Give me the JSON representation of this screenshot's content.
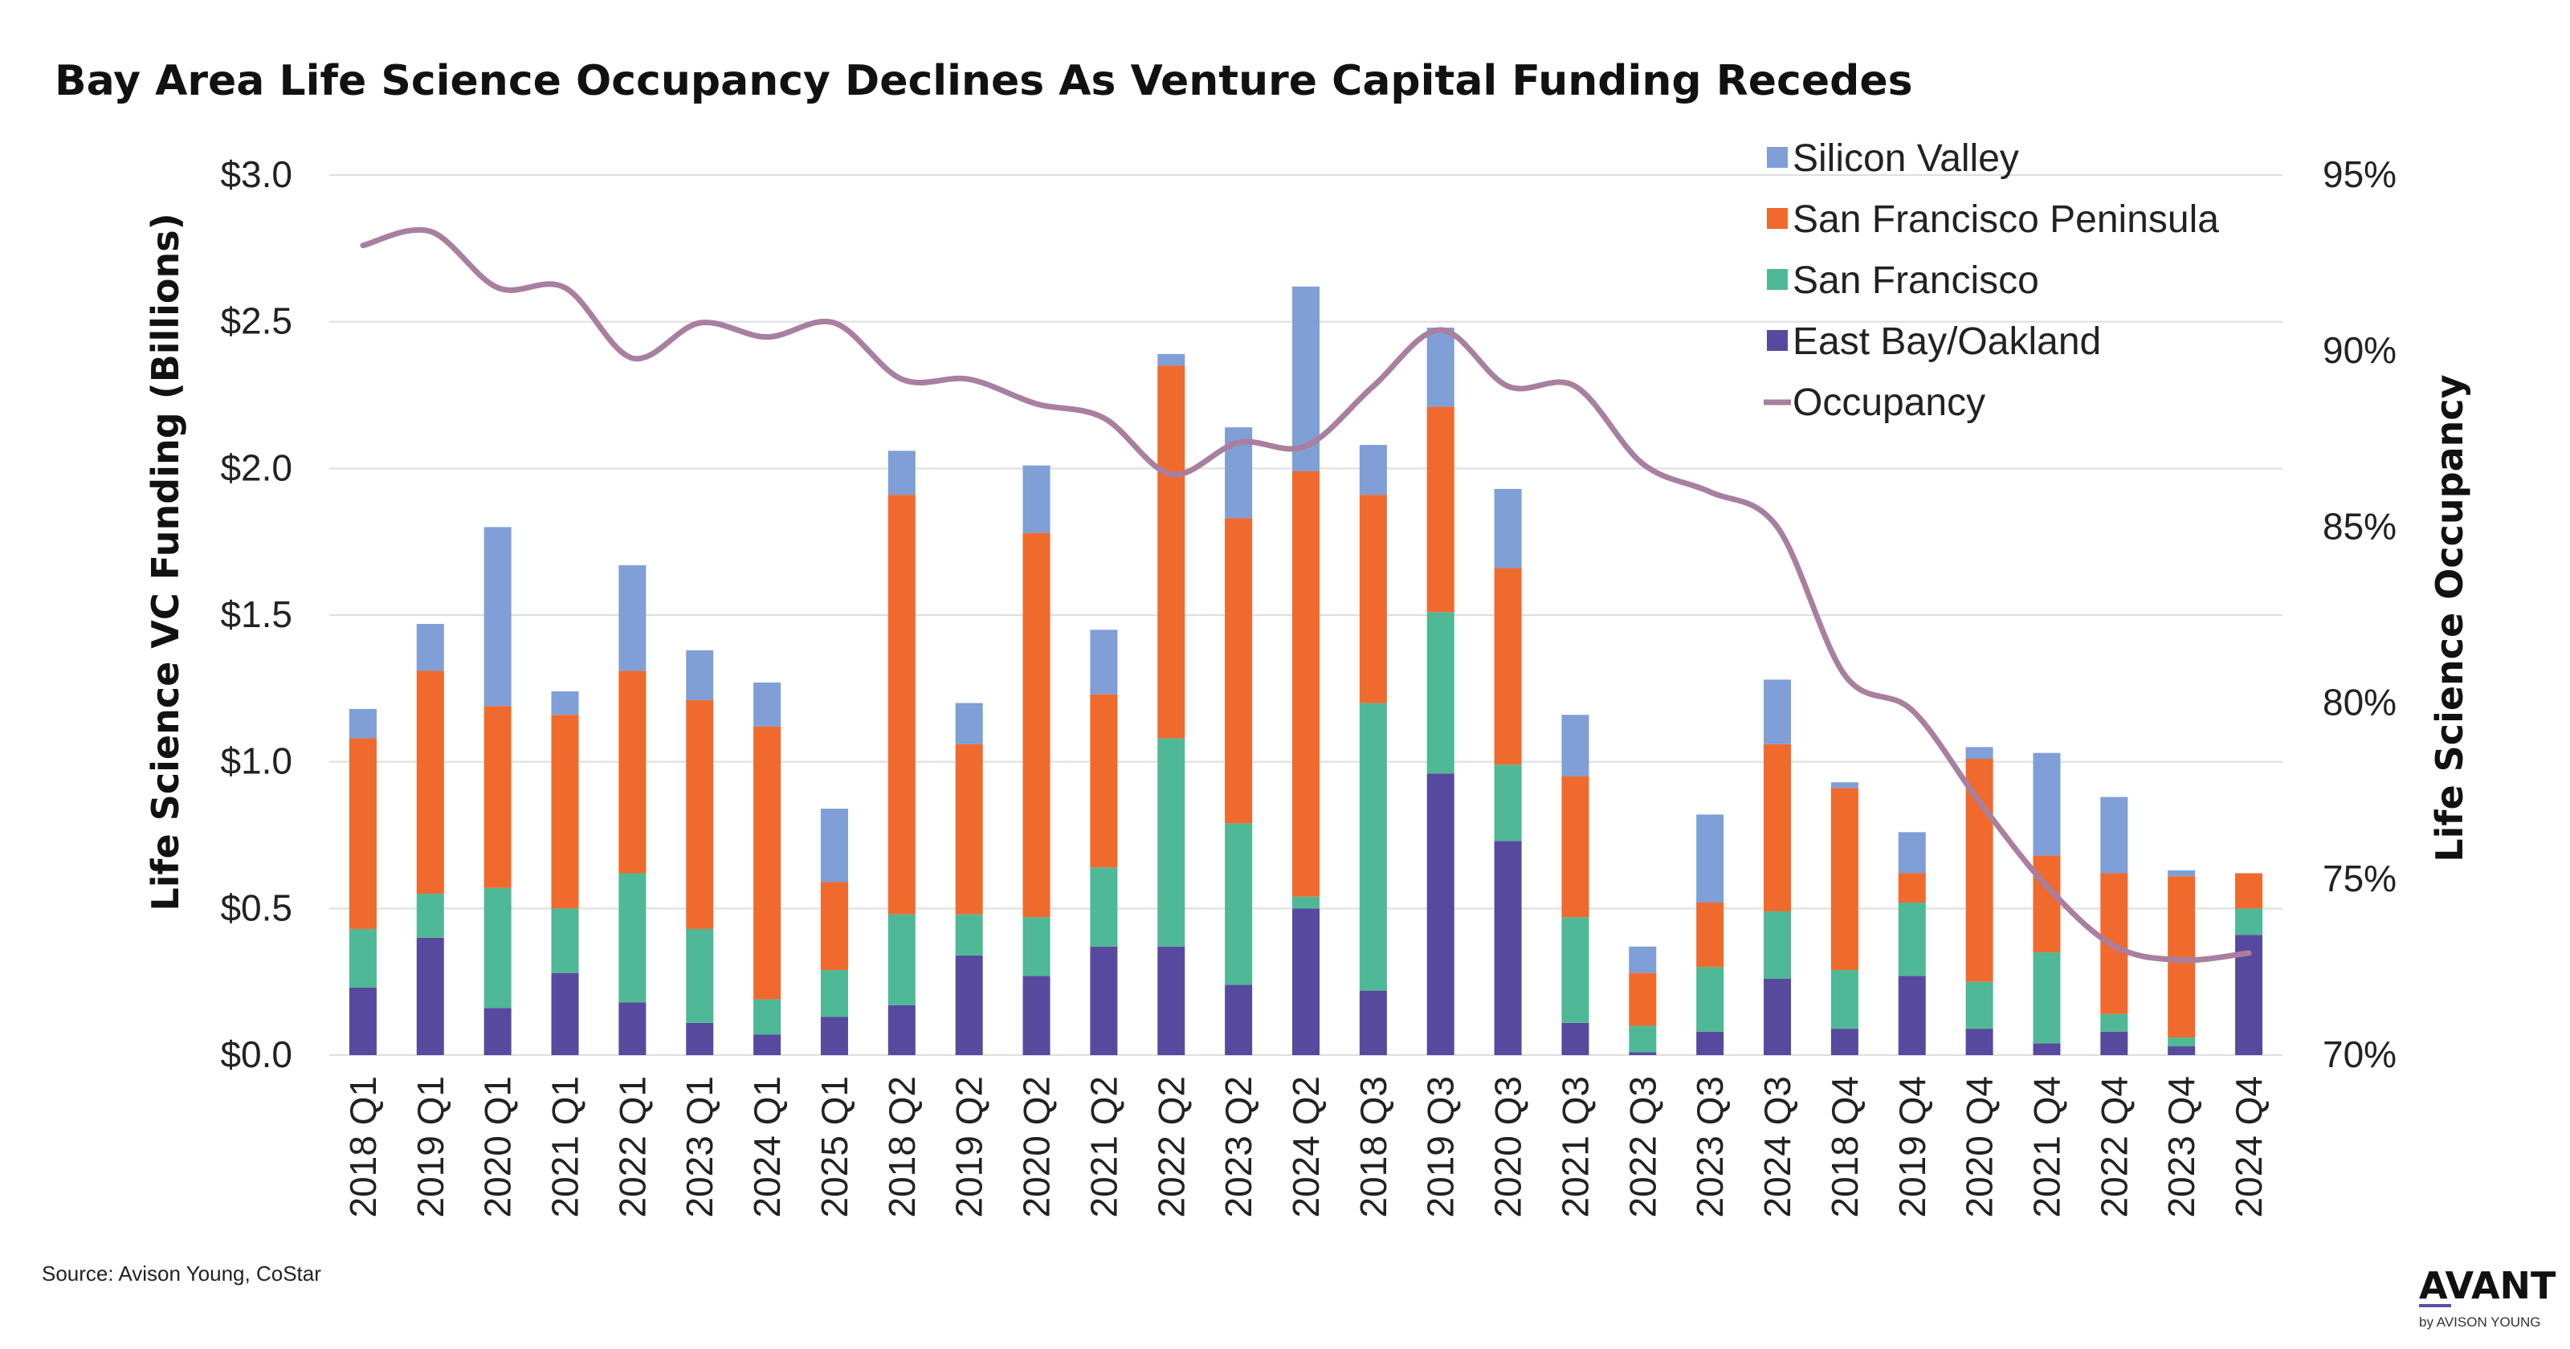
{
  "chart_data": {
    "type": "bar",
    "stacked": true,
    "title": "Bay Area Life Science Occupancy Declines As Venture Capital Funding Recedes",
    "ylabel": "Life Science VC Funding (Billions)",
    "y2label": "Life Science Occupancy",
    "ylim": [
      0,
      3.0
    ],
    "y2lim": [
      70,
      95
    ],
    "yticks": [
      "$0.0",
      "$0.5",
      "$1.0",
      "$1.5",
      "$2.0",
      "$2.5",
      "$3.0"
    ],
    "y2ticks": [
      "70%",
      "75%",
      "80%",
      "85%",
      "90%",
      "95%"
    ],
    "grid": true,
    "legend_position": "top-right",
    "categories": [
      "2018 Q1",
      "2019 Q1",
      "2020 Q1",
      "2021 Q1",
      "2022 Q1",
      "2023 Q1",
      "2024 Q1",
      "2025 Q1",
      "2018 Q2",
      "2019 Q2",
      "2020 Q2",
      "2021 Q2",
      "2022 Q2",
      "2023 Q2",
      "2024 Q2",
      "2018 Q3",
      "2019 Q3",
      "2020 Q3",
      "2021 Q3",
      "2022 Q3",
      "2023 Q3",
      "2024 Q3",
      "2018 Q4",
      "2019 Q4",
      "2020 Q4",
      "2021 Q4",
      "2022 Q4",
      "2023 Q4",
      "2024 Q4"
    ],
    "series": [
      {
        "name": "East Bay/Oakland",
        "color": "#574a9e",
        "values": [
          0.23,
          0.4,
          0.16,
          0.28,
          0.18,
          0.11,
          0.07,
          0.13,
          0.17,
          0.34,
          0.27,
          0.37,
          0.37,
          0.24,
          0.5,
          0.22,
          0.96,
          0.73,
          0.11,
          0.01,
          0.08,
          0.26,
          0.09,
          0.27,
          0.09,
          0.04,
          0.08,
          0.03,
          0.41
        ]
      },
      {
        "name": "San Francisco",
        "color": "#4fb896",
        "values": [
          0.2,
          0.15,
          0.41,
          0.22,
          0.44,
          0.32,
          0.12,
          0.16,
          0.31,
          0.14,
          0.2,
          0.27,
          0.71,
          0.55,
          0.04,
          0.98,
          0.55,
          0.26,
          0.36,
          0.09,
          0.22,
          0.23,
          0.2,
          0.25,
          0.16,
          0.31,
          0.06,
          0.03,
          0.09
        ]
      },
      {
        "name": "San Francisco Peninsula",
        "color": "#f06a2d",
        "values": [
          0.65,
          0.76,
          0.62,
          0.66,
          0.69,
          0.78,
          0.93,
          0.3,
          1.43,
          0.58,
          1.31,
          0.59,
          1.27,
          1.04,
          1.45,
          0.71,
          0.7,
          0.67,
          0.48,
          0.18,
          0.22,
          0.57,
          0.62,
          0.1,
          0.76,
          0.33,
          0.48,
          0.55,
          0.12
        ]
      },
      {
        "name": "Silicon Valley",
        "color": "#7f9fd6",
        "values": [
          0.1,
          0.16,
          0.61,
          0.08,
          0.36,
          0.17,
          0.15,
          0.25,
          0.15,
          0.14,
          0.23,
          0.22,
          0.04,
          0.31,
          0.63,
          0.17,
          0.27,
          0.27,
          0.21,
          0.09,
          0.3,
          0.22,
          0.02,
          0.14,
          0.04,
          0.35,
          0.26,
          0.02,
          0.0
        ]
      }
    ],
    "line_series": {
      "name": "Occupancy",
      "color": "#a97f9f",
      "axis": "right",
      "values": [
        93.0,
        93.4,
        91.8,
        91.8,
        89.8,
        90.8,
        90.4,
        90.8,
        89.2,
        89.2,
        88.5,
        88.1,
        86.5,
        87.4,
        87.3,
        89.0,
        90.6,
        89.0,
        89.0,
        86.8,
        86.0,
        85.0,
        80.8,
        79.8,
        77.2,
        74.8,
        73.1,
        72.7,
        72.9
      ]
    }
  },
  "footer": {
    "source": "Source: Avison Young, CoStar",
    "brand": "AVANT",
    "brand_sub": "by AVISON YOUNG"
  },
  "colors": {
    "grid": "#dedede",
    "brand_accent": "#5d4fa6"
  }
}
